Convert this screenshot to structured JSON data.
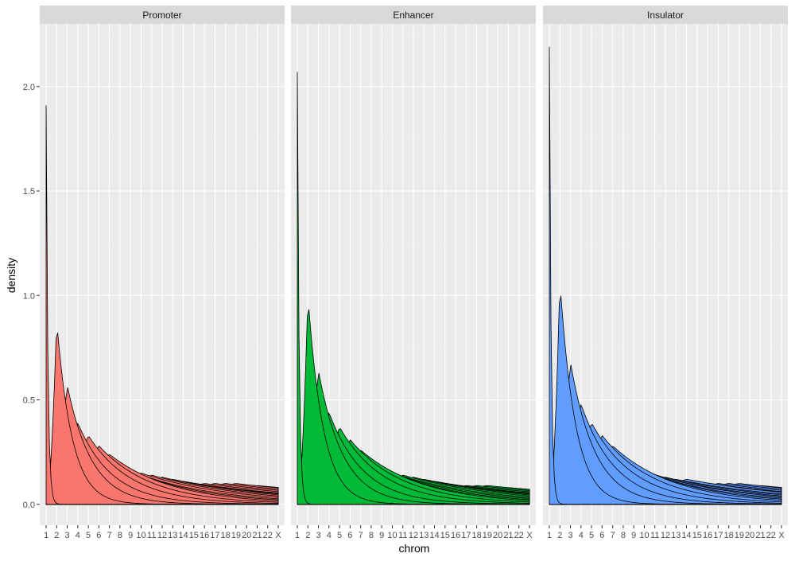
{
  "chart_data": {
    "type": "area",
    "title": "",
    "xlabel": "chrom",
    "ylabel": "density",
    "ylim": [
      -0.1,
      2.3
    ],
    "yticks": [
      0.0,
      0.5,
      1.0,
      1.5,
      2.0
    ],
    "ytick_labels": [
      "0.0",
      "0.5",
      "1.0",
      "1.5",
      "2.0"
    ],
    "categories": [
      "1",
      "2",
      "3",
      "4",
      "5",
      "6",
      "7",
      "8",
      "9",
      "10",
      "11",
      "12",
      "13",
      "14",
      "15",
      "16",
      "17",
      "18",
      "19",
      "20",
      "21",
      "22",
      "X"
    ],
    "grid": true,
    "legend": "none",
    "panels": [
      {
        "name": "Promoter",
        "fill": "#F8766D",
        "peak_values": [
          1.91,
          0.88,
          0.57,
          0.39,
          0.33,
          0.28,
          0.24,
          0.19,
          0.16,
          0.15,
          0.14,
          0.13,
          0.12,
          0.11,
          0.1,
          0.1,
          0.1,
          0.1,
          0.1,
          0.09,
          0.09,
          0.08,
          0.07
        ]
      },
      {
        "name": "Enhancer",
        "fill": "#00BA38",
        "peak_values": [
          2.07,
          1.0,
          0.64,
          0.44,
          0.37,
          0.31,
          0.26,
          0.2,
          0.17,
          0.15,
          0.14,
          0.13,
          0.12,
          0.11,
          0.1,
          0.09,
          0.09,
          0.09,
          0.09,
          0.08,
          0.08,
          0.07,
          0.07
        ]
      },
      {
        "name": "Insulator",
        "fill": "#619CFF",
        "peak_values": [
          2.19,
          1.07,
          0.68,
          0.48,
          0.39,
          0.33,
          0.28,
          0.22,
          0.18,
          0.16,
          0.14,
          0.13,
          0.12,
          0.12,
          0.11,
          0.1,
          0.1,
          0.1,
          0.1,
          0.09,
          0.09,
          0.08,
          0.08
        ]
      }
    ]
  }
}
